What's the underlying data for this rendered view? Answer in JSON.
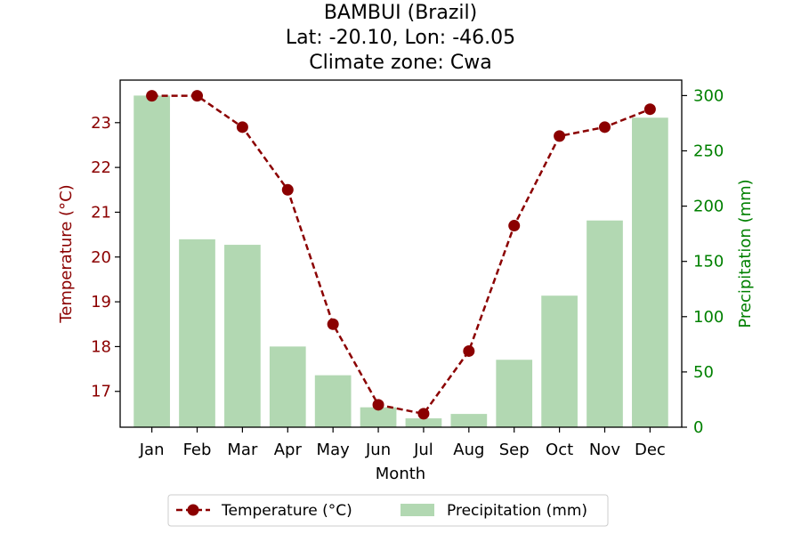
{
  "chart_data": {
    "type": "bar",
    "title": [
      "BAMBUI (Brazil)",
      "Lat: -20.10, Lon: -46.05",
      "Climate zone: Cwa"
    ],
    "xlabel": "Month",
    "categories": [
      "Jan",
      "Feb",
      "Mar",
      "Apr",
      "May",
      "Jun",
      "Jul",
      "Aug",
      "Sep",
      "Oct",
      "Nov",
      "Dec"
    ],
    "series": [
      {
        "name": "Temperature (°C)",
        "type": "line",
        "axis": "left",
        "color": "#8b0000",
        "line_style": "dashed",
        "marker": "circle",
        "values": [
          23.6,
          23.6,
          22.9,
          21.5,
          18.5,
          16.7,
          16.5,
          17.9,
          20.7,
          22.7,
          22.9,
          23.3
        ]
      },
      {
        "name": "Precipitation (mm)",
        "type": "bar",
        "axis": "right",
        "color": "#b2d8b2",
        "values": [
          300,
          170,
          165,
          73,
          47,
          18,
          8,
          12,
          61,
          119,
          187,
          280
        ]
      }
    ],
    "ylabel_left": "Temperature (°C)",
    "ylabel_right": "Precipitation (mm)",
    "ylim_left": [
      16.2,
      23.95
    ],
    "ylim_right": [
      0,
      314
    ],
    "yticks_left": [
      17,
      18,
      19,
      20,
      21,
      22,
      23
    ],
    "yticks_right": [
      0,
      50,
      100,
      150,
      200,
      250,
      300
    ],
    "left_axis_color": "#8b0000",
    "right_axis_color": "#008000",
    "grid": false,
    "legend_position": "bottom-center"
  }
}
